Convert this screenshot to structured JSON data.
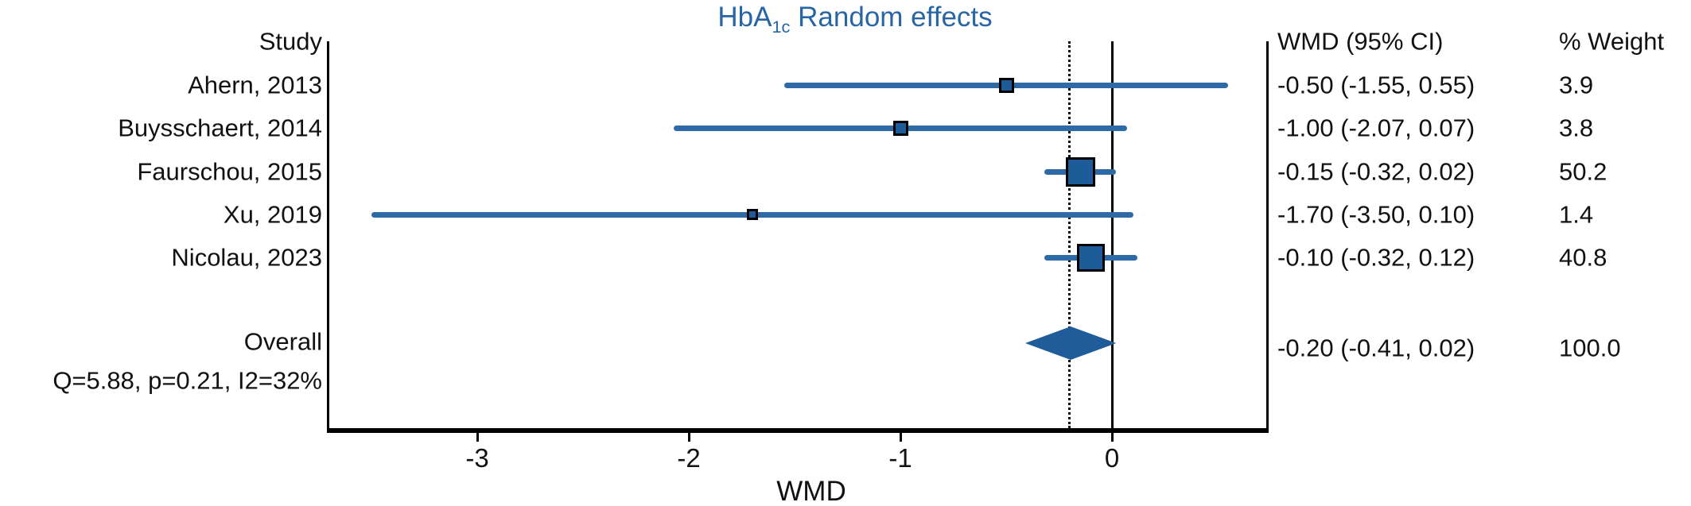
{
  "title": {
    "prefix": "HbA",
    "subscript": "1c",
    "suffix": "Random effects"
  },
  "headers": {
    "study": "Study",
    "wmd_ci": "WMD (95% CI)",
    "weight": "% Weight"
  },
  "colors": {
    "title_blue": "#2765a5",
    "ci_line_blue": "#2e6aa5",
    "marker_fill_blue": "#1e5c99",
    "diamond_fill_blue": "#1f5c99",
    "axis_black": "#000000",
    "text_black": "#111111"
  },
  "chart_data": {
    "type": "forest",
    "title": "HbA1c Random effects",
    "xlabel": "WMD",
    "x_ticks": [
      "-3",
      "-2",
      "-1",
      "0"
    ],
    "x_tick_values": [
      -3,
      -2,
      -1,
      0
    ],
    "xlim": [
      -3.7,
      0.74
    ],
    "no_effect_line_x": 0,
    "overall_estimate_line_x": -0.2,
    "columns": [
      "Study",
      "WMD (95% CI)",
      "% Weight"
    ],
    "studies": [
      {
        "label": "Ahern, 2013",
        "wmd": -0.5,
        "ci_low": -1.55,
        "ci_high": 0.55,
        "weight": 3.9,
        "wmd_ci_text": "-0.50 (-1.55, 0.55)",
        "weight_text": "3.9"
      },
      {
        "label": "Buysschaert, 2014",
        "wmd": -1.0,
        "ci_low": -2.07,
        "ci_high": 0.07,
        "weight": 3.8,
        "wmd_ci_text": "-1.00 (-2.07, 0.07)",
        "weight_text": "3.8"
      },
      {
        "label": "Faurschou, 2015",
        "wmd": -0.15,
        "ci_low": -0.32,
        "ci_high": 0.02,
        "weight": 50.2,
        "wmd_ci_text": "-0.15 (-0.32, 0.02)",
        "weight_text": "50.2"
      },
      {
        "label": "Xu, 2019",
        "wmd": -1.7,
        "ci_low": -3.5,
        "ci_high": 0.1,
        "weight": 1.4,
        "wmd_ci_text": "-1.70 (-3.50, 0.10)",
        "weight_text": "1.4"
      },
      {
        "label": "Nicolau, 2023",
        "wmd": -0.1,
        "ci_low": -0.32,
        "ci_high": 0.12,
        "weight": 40.8,
        "wmd_ci_text": "-0.10 (-0.32, 0.12)",
        "weight_text": "40.8"
      }
    ],
    "overall": {
      "label": "Overall",
      "wmd": -0.2,
      "ci_low": -0.41,
      "ci_high": 0.02,
      "weight": 100.0,
      "wmd_ci_text": "-0.20 (-0.41, 0.02)",
      "weight_text": "100.0"
    },
    "heterogeneity": "Q=5.88, p=0.21, I2=32%"
  }
}
